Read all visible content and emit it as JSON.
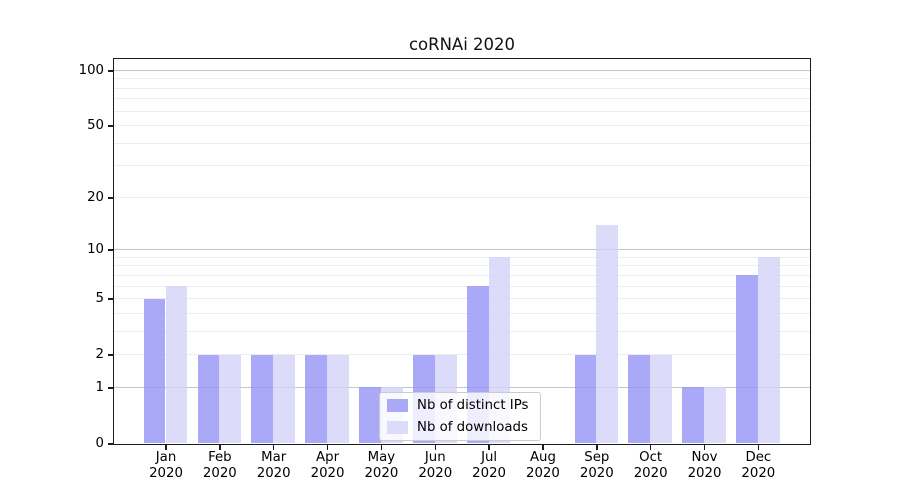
{
  "chart_data": {
    "type": "bar",
    "title": "coRNAi 2020",
    "yscale": "log1p",
    "ylim": [
      0,
      116
    ],
    "grid": true,
    "y_ticks": [
      0,
      1,
      2,
      5,
      10,
      20,
      50,
      100
    ],
    "major_gridlines": [
      1,
      10,
      100
    ],
    "minor_gridlines": [
      2,
      3,
      4,
      5,
      6,
      7,
      8,
      9,
      20,
      30,
      40,
      50,
      60,
      70,
      80,
      90
    ],
    "categories": [
      "Jan",
      "Feb",
      "Mar",
      "Apr",
      "May",
      "Jun",
      "Jul",
      "Aug",
      "Sep",
      "Oct",
      "Nov",
      "Dec"
    ],
    "year_label": "2020",
    "legend_position": "lower center inside plot",
    "series": [
      {
        "name": "Nb of distinct IPs",
        "color": "#a9a9f7",
        "values": [
          5,
          2,
          2,
          2,
          1,
          2,
          6,
          0,
          2,
          2,
          1,
          7
        ]
      },
      {
        "name": "Nb of downloads",
        "color": "#dcdcfa",
        "values": [
          6,
          2,
          2,
          2,
          1,
          2,
          9,
          0,
          14,
          2,
          1,
          9
        ]
      }
    ]
  },
  "colors": {
    "series_dark": "#a9a9f7",
    "series_light": "#dcdcfa",
    "grid_major": "#c4c4c4",
    "grid_minor": "#ededed",
    "axis": "#1c1c1c",
    "text": "#000000",
    "legend_border": "#cccccc",
    "legend_background": "rgba(255,255,255,0.8)"
  }
}
